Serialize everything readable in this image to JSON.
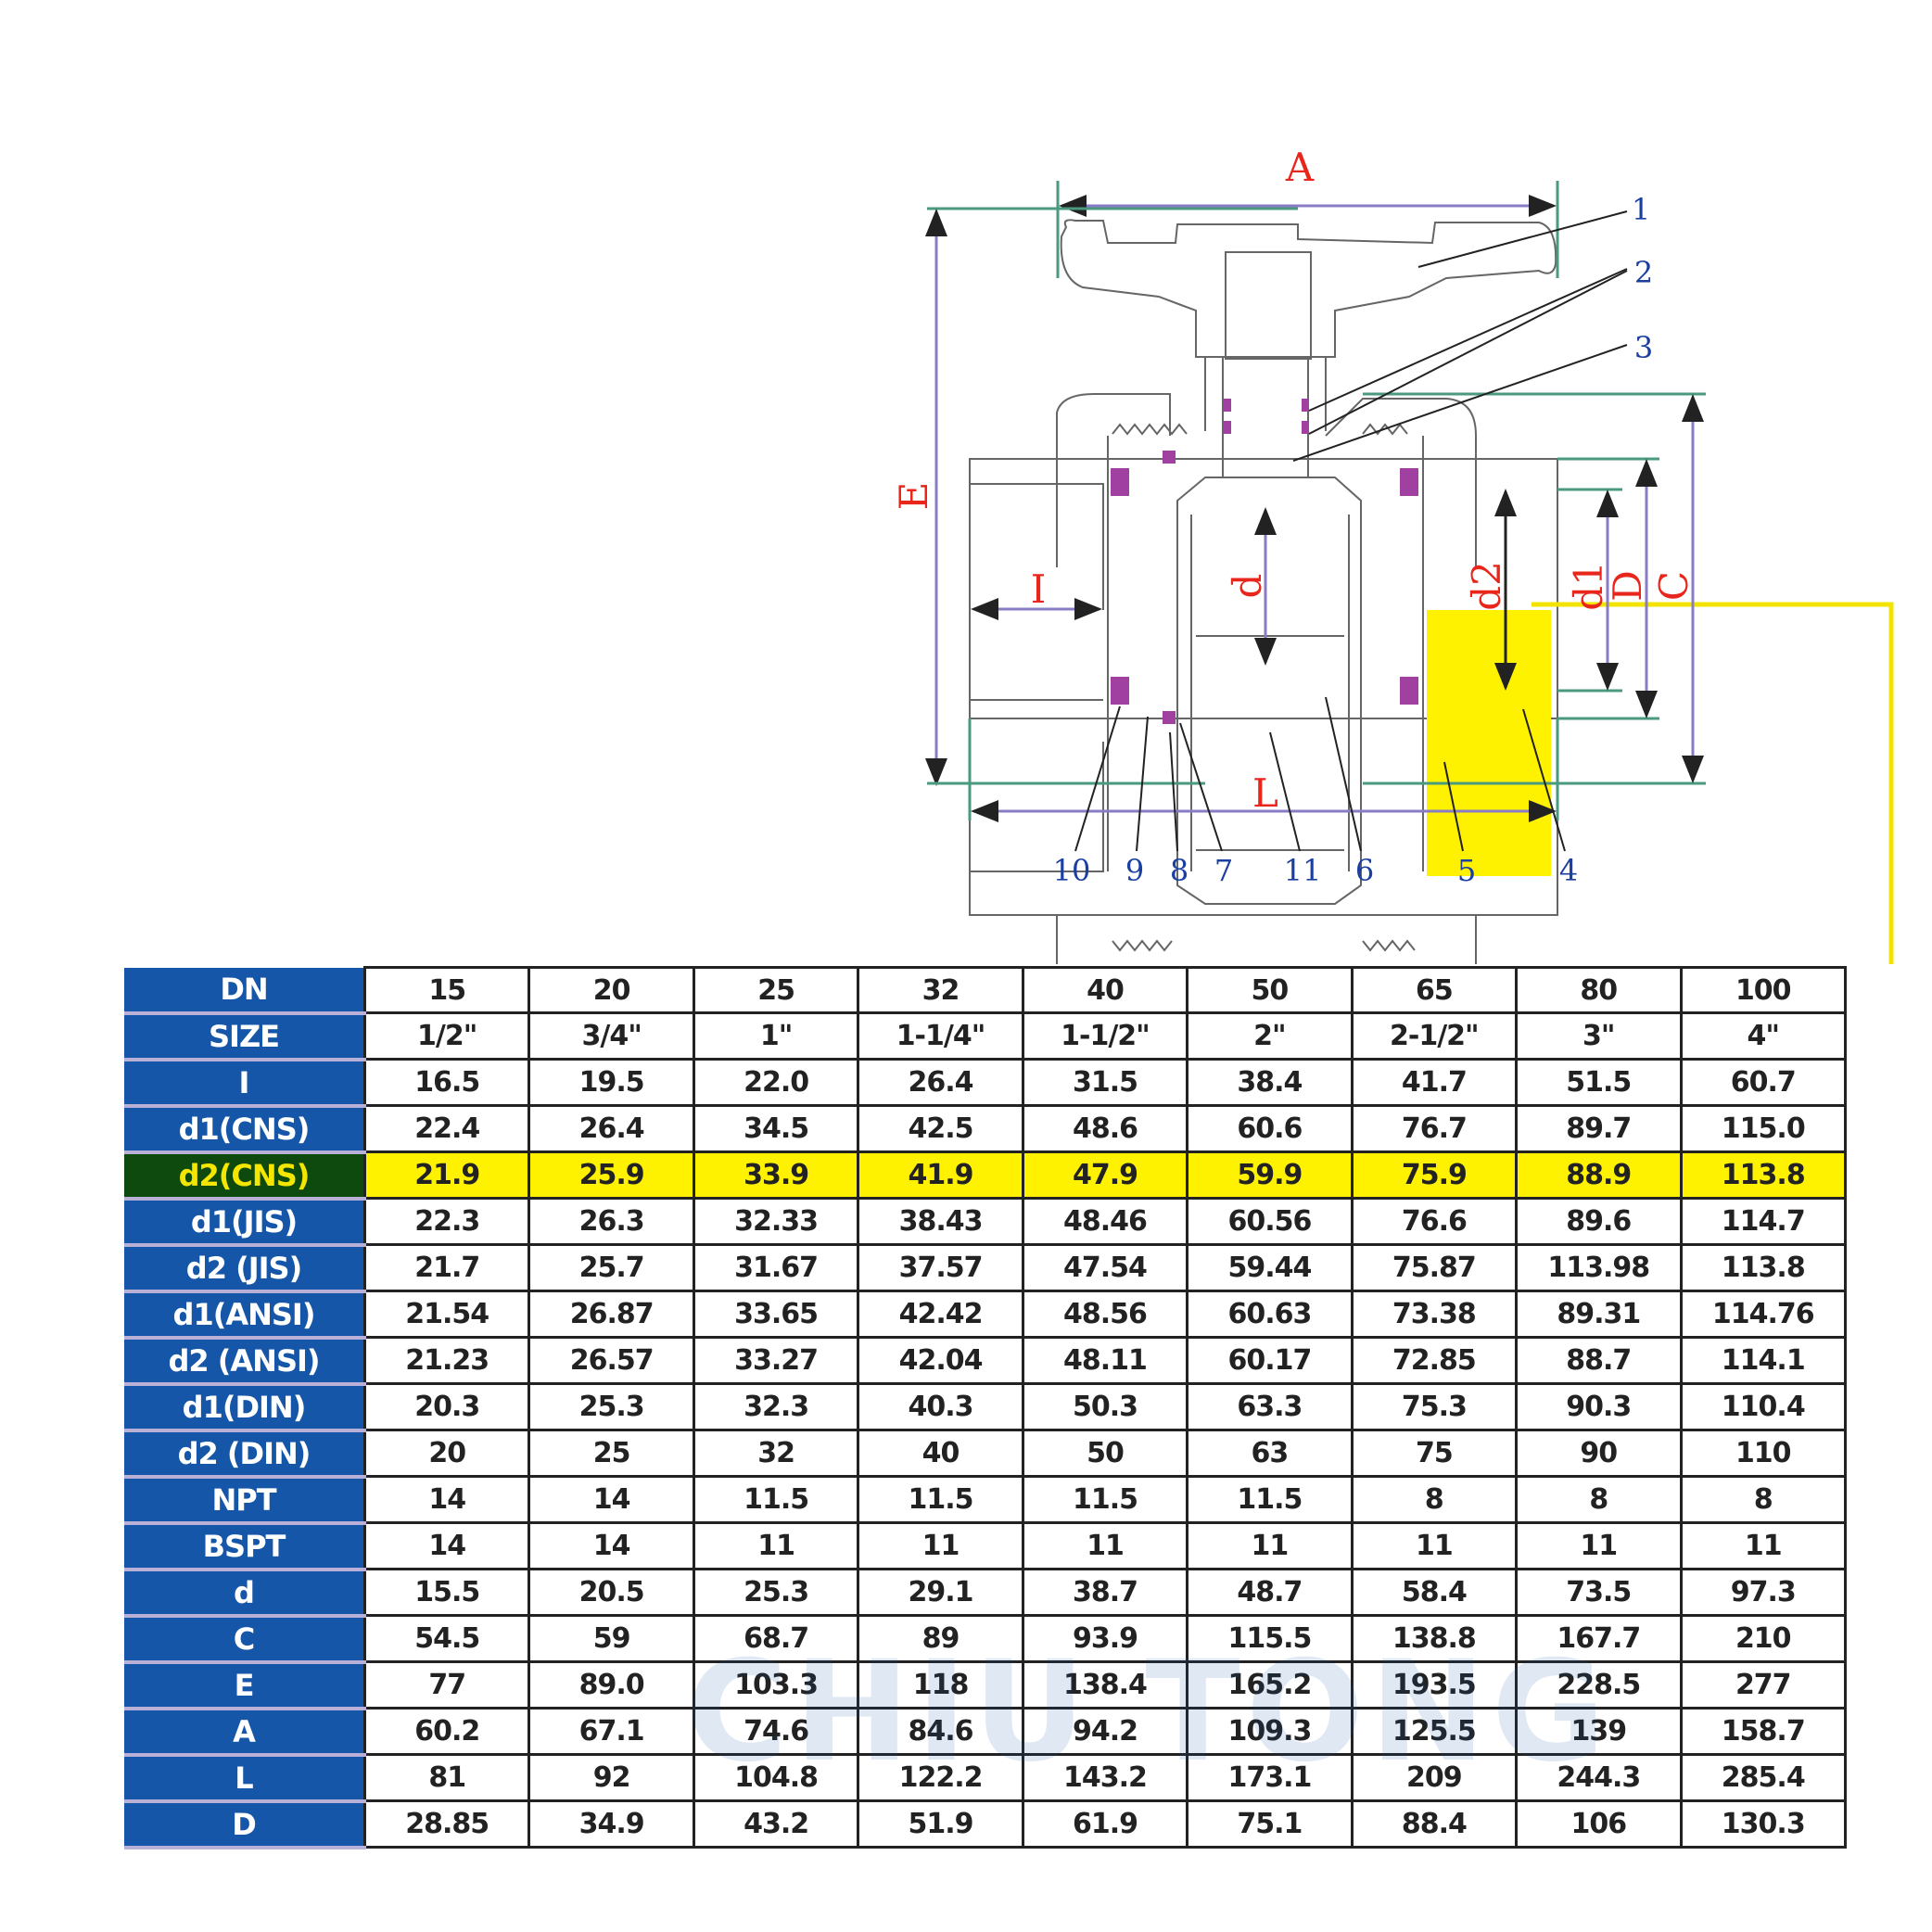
{
  "diagram": {
    "dimension_labels": {
      "A": "A",
      "E": "E",
      "I": "I",
      "d": "d",
      "d2": "d2",
      "d1": "d1",
      "D": "D",
      "C": "C",
      "L": "L"
    },
    "part_numbers": [
      "1",
      "2",
      "3",
      "4",
      "5",
      "6",
      "7",
      "8",
      "9",
      "10",
      "11"
    ],
    "colors": {
      "dimension_text": "#e8261c",
      "part_number_text": "#1a3fa0",
      "dimension_line": "#8a7cc4",
      "seal": "#a040a0",
      "highlight": "#fff200"
    }
  },
  "watermark": "CHIU TONG",
  "table": {
    "columns": [
      "15",
      "20",
      "25",
      "32",
      "40",
      "50",
      "65",
      "80",
      "100"
    ],
    "highlighted_row": "d2(CNS)",
    "rows": [
      {
        "label": "DN",
        "values": [
          "15",
          "20",
          "25",
          "32",
          "40",
          "50",
          "65",
          "80",
          "100"
        ]
      },
      {
        "label": "SIZE",
        "values": [
          "1/2\"",
          "3/4\"",
          "1\"",
          "1-1/4\"",
          "1-1/2\"",
          "2\"",
          "2-1/2\"",
          "3\"",
          "4\""
        ]
      },
      {
        "label": "I",
        "values": [
          "16.5",
          "19.5",
          "22.0",
          "26.4",
          "31.5",
          "38.4",
          "41.7",
          "51.5",
          "60.7"
        ]
      },
      {
        "label": "d1(CNS)",
        "values": [
          "22.4",
          "26.4",
          "34.5",
          "42.5",
          "48.6",
          "60.6",
          "76.7",
          "89.7",
          "115.0"
        ]
      },
      {
        "label": "d2(CNS)",
        "values": [
          "21.9",
          "25.9",
          "33.9",
          "41.9",
          "47.9",
          "59.9",
          "75.9",
          "88.9",
          "113.8"
        ]
      },
      {
        "label": "d1(JIS)",
        "values": [
          "22.3",
          "26.3",
          "32.33",
          "38.43",
          "48.46",
          "60.56",
          "76.6",
          "89.6",
          "114.7"
        ]
      },
      {
        "label": "d2 (JIS)",
        "values": [
          "21.7",
          "25.7",
          "31.67",
          "37.57",
          "47.54",
          "59.44",
          "75.87",
          "113.98",
          "113.8"
        ]
      },
      {
        "label": "d1(ANSI)",
        "values": [
          "21.54",
          "26.87",
          "33.65",
          "42.42",
          "48.56",
          "60.63",
          "73.38",
          "89.31",
          "114.76"
        ]
      },
      {
        "label": "d2 (ANSI)",
        "values": [
          "21.23",
          "26.57",
          "33.27",
          "42.04",
          "48.11",
          "60.17",
          "72.85",
          "88.7",
          "114.1"
        ]
      },
      {
        "label": "d1(DIN)",
        "values": [
          "20.3",
          "25.3",
          "32.3",
          "40.3",
          "50.3",
          "63.3",
          "75.3",
          "90.3",
          "110.4"
        ]
      },
      {
        "label": "d2 (DIN)",
        "values": [
          "20",
          "25",
          "32",
          "40",
          "50",
          "63",
          "75",
          "90",
          "110"
        ]
      },
      {
        "label": "NPT",
        "values": [
          "14",
          "14",
          "11.5",
          "11.5",
          "11.5",
          "11.5",
          "8",
          "8",
          "8"
        ]
      },
      {
        "label": "BSPT",
        "values": [
          "14",
          "14",
          "11",
          "11",
          "11",
          "11",
          "11",
          "11",
          "11"
        ]
      },
      {
        "label": "d",
        "values": [
          "15.5",
          "20.5",
          "25.3",
          "29.1",
          "38.7",
          "48.7",
          "58.4",
          "73.5",
          "97.3"
        ]
      },
      {
        "label": "C",
        "values": [
          "54.5",
          "59",
          "68.7",
          "89",
          "93.9",
          "115.5",
          "138.8",
          "167.7",
          "210"
        ]
      },
      {
        "label": "E",
        "values": [
          "77",
          "89.0",
          "103.3",
          "118",
          "138.4",
          "165.2",
          "193.5",
          "228.5",
          "277"
        ]
      },
      {
        "label": "A",
        "values": [
          "60.2",
          "67.1",
          "74.6",
          "84.6",
          "94.2",
          "109.3",
          "125.5",
          "139",
          "158.7"
        ]
      },
      {
        "label": "L",
        "values": [
          "81",
          "92",
          "104.8",
          "122.2",
          "143.2",
          "173.1",
          "209",
          "244.3",
          "285.4"
        ]
      },
      {
        "label": "D",
        "values": [
          "28.85",
          "34.9",
          "43.2",
          "51.9",
          "61.9",
          "75.1",
          "88.4",
          "106",
          "130.3"
        ]
      }
    ]
  }
}
